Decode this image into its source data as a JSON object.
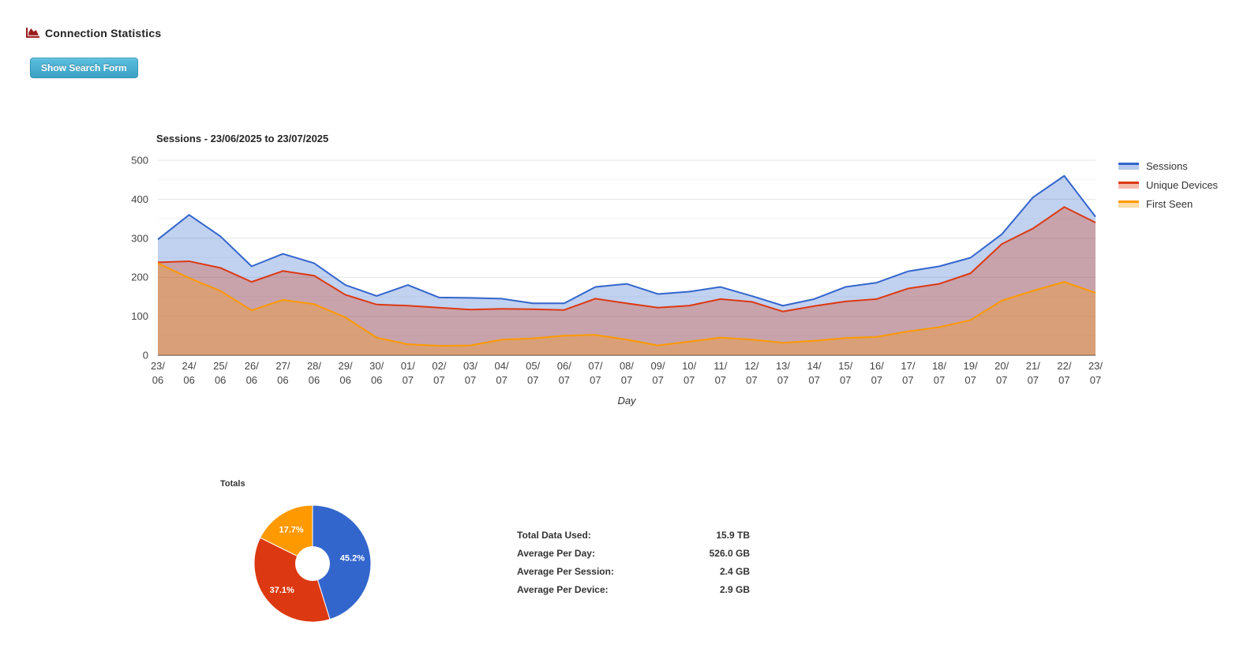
{
  "header": {
    "title": "Connection Statistics"
  },
  "toolbar": {
    "show_search_label": "Show Search Form"
  },
  "colors": {
    "header_icon": "#9b1c1c",
    "sessions": "#3366CC",
    "unique_devices": "#DC3912",
    "first_seen": "#FF9900"
  },
  "chart_data": [
    {
      "type": "area",
      "title": "Sessions - 23/06/2025 to 23/07/2025",
      "xlabel": "Day",
      "ylabel": "",
      "ylim": [
        0,
        500
      ],
      "yticks": [
        0,
        100,
        200,
        300,
        400,
        500
      ],
      "grid": true,
      "legend_position": "right",
      "categories": [
        "23/06",
        "24/06",
        "25/06",
        "26/06",
        "27/06",
        "28/06",
        "29/06",
        "30/06",
        "01/07",
        "02/07",
        "03/07",
        "04/07",
        "05/07",
        "06/07",
        "07/07",
        "08/07",
        "09/07",
        "10/07",
        "11/07",
        "12/07",
        "13/07",
        "14/07",
        "15/07",
        "16/07",
        "17/07",
        "18/07",
        "19/07",
        "20/07",
        "21/07",
        "22/07",
        "23/07"
      ],
      "series": [
        {
          "name": "Sessions",
          "color": "#3366CC",
          "values": [
            297,
            360,
            305,
            228,
            260,
            236,
            180,
            152,
            180,
            148,
            147,
            145,
            133,
            133,
            175,
            183,
            157,
            163,
            175,
            152,
            127,
            144,
            175,
            186,
            215,
            228,
            250,
            310,
            405,
            460,
            355
          ]
        },
        {
          "name": "Unique Devices",
          "color": "#DC3912",
          "values": [
            238,
            241,
            224,
            188,
            216,
            204,
            155,
            130,
            127,
            122,
            117,
            119,
            118,
            116,
            145,
            133,
            122,
            127,
            144,
            137,
            112,
            126,
            138,
            144,
            171,
            183,
            210,
            285,
            325,
            380,
            340
          ]
        },
        {
          "name": "First Seen",
          "color": "#FF9900",
          "values": [
            236,
            198,
            165,
            115,
            142,
            131,
            97,
            45,
            28,
            24,
            25,
            40,
            43,
            50,
            52,
            40,
            25,
            35,
            45,
            40,
            32,
            37,
            44,
            47,
            61,
            72,
            90,
            140,
            165,
            188,
            160
          ]
        }
      ]
    },
    {
      "type": "pie",
      "title": "Totals",
      "donut": true,
      "slices": [
        {
          "label": "45.2%",
          "value": 45.2,
          "color": "#3366CC"
        },
        {
          "label": "37.1%",
          "value": 37.1,
          "color": "#DC3912"
        },
        {
          "label": "17.7%",
          "value": 17.7,
          "color": "#FF9900"
        }
      ]
    }
  ],
  "totals": {
    "rows": [
      {
        "label": "Total Data Used:",
        "value": "15.9 TB"
      },
      {
        "label": "Average Per Day:",
        "value": "526.0 GB"
      },
      {
        "label": "Average Per Session:",
        "value": "2.4 GB"
      },
      {
        "label": "Average Per Device:",
        "value": "2.9 GB"
      }
    ]
  }
}
